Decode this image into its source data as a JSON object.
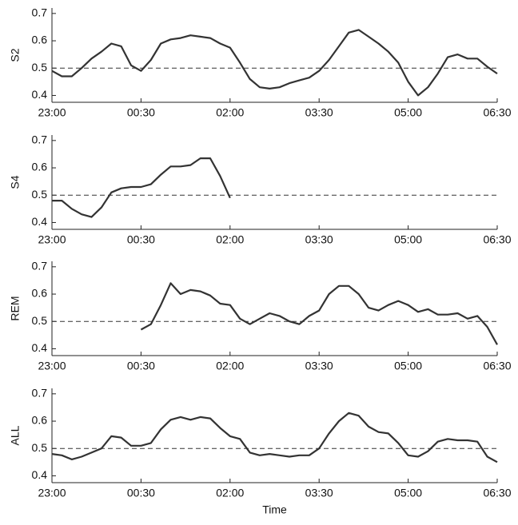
{
  "chart_data": [
    {
      "type": "line",
      "ylabel": "S2",
      "color": "#333333",
      "hline": 0.5,
      "hline_style": "dashed",
      "x": [
        0,
        10,
        20,
        30,
        40,
        50,
        60,
        70,
        80,
        90,
        100,
        110,
        120,
        130,
        140,
        150,
        160,
        170,
        180,
        190,
        200,
        210,
        220,
        230,
        240,
        250,
        260,
        270,
        280,
        290,
        300,
        310,
        320,
        330,
        340,
        350,
        360,
        370,
        380,
        390,
        400,
        410,
        420,
        430,
        440,
        450
      ],
      "values": [
        0.49,
        0.47,
        0.47,
        0.5,
        0.535,
        0.56,
        0.59,
        0.58,
        0.51,
        0.49,
        0.53,
        0.59,
        0.605,
        0.61,
        0.62,
        0.615,
        0.61,
        0.59,
        0.575,
        0.52,
        0.46,
        0.43,
        0.425,
        0.43,
        0.445,
        0.455,
        0.465,
        0.49,
        0.53,
        0.58,
        0.63,
        0.64,
        0.615,
        0.59,
        0.56,
        0.52,
        0.45,
        0.4,
        0.43,
        0.48,
        0.54,
        0.55,
        0.535,
        0.535,
        0.505,
        0.48
      ],
      "xlim": [
        0,
        450
      ],
      "xticks": [
        {
          "value": 0,
          "label": "23:00"
        },
        {
          "value": 90,
          "label": "00:30"
        },
        {
          "value": 180,
          "label": "02:00"
        },
        {
          "value": 270,
          "label": "03:30"
        },
        {
          "value": 360,
          "label": "05:00"
        },
        {
          "value": 450,
          "label": "06:30"
        }
      ],
      "ylim": [
        0.375,
        0.72
      ],
      "yticks": [
        0.4,
        0.5,
        0.6,
        0.7
      ]
    },
    {
      "type": "line",
      "ylabel": "S4",
      "color": "#333333",
      "hline": 0.5,
      "hline_style": "dashed",
      "x": [
        0,
        10,
        20,
        30,
        40,
        50,
        60,
        70,
        80,
        90,
        100,
        110,
        120,
        130,
        140,
        150,
        160,
        170,
        180
      ],
      "values": [
        0.48,
        0.48,
        0.45,
        0.43,
        0.42,
        0.455,
        0.51,
        0.525,
        0.53,
        0.53,
        0.54,
        0.575,
        0.605,
        0.605,
        0.61,
        0.635,
        0.635,
        0.57,
        0.49
      ],
      "xlim": [
        0,
        450
      ],
      "xticks": [
        {
          "value": 0,
          "label": "23:00"
        },
        {
          "value": 90,
          "label": "00:30"
        },
        {
          "value": 180,
          "label": "02:00"
        },
        {
          "value": 270,
          "label": "03:30"
        },
        {
          "value": 360,
          "label": "05:00"
        },
        {
          "value": 450,
          "label": "06:30"
        }
      ],
      "ylim": [
        0.375,
        0.72
      ],
      "yticks": [
        0.4,
        0.5,
        0.6,
        0.7
      ]
    },
    {
      "type": "line",
      "ylabel": "REM",
      "color": "#333333",
      "hline": 0.5,
      "hline_style": "dashed",
      "x": [
        90,
        100,
        110,
        120,
        130,
        140,
        150,
        160,
        170,
        180,
        190,
        200,
        210,
        220,
        230,
        240,
        250,
        260,
        270,
        280,
        290,
        300,
        310,
        320,
        330,
        340,
        350,
        360,
        370,
        380,
        390,
        400,
        410,
        420,
        430,
        440,
        450
      ],
      "values": [
        0.47,
        0.49,
        0.56,
        0.64,
        0.6,
        0.615,
        0.61,
        0.595,
        0.565,
        0.56,
        0.51,
        0.49,
        0.51,
        0.53,
        0.52,
        0.5,
        0.49,
        0.52,
        0.54,
        0.6,
        0.63,
        0.63,
        0.6,
        0.55,
        0.54,
        0.56,
        0.575,
        0.56,
        0.535,
        0.545,
        0.525,
        0.525,
        0.53,
        0.51,
        0.52,
        0.48,
        0.415
      ],
      "xlim": [
        0,
        450
      ],
      "xticks": [
        {
          "value": 0,
          "label": "23:00"
        },
        {
          "value": 90,
          "label": "00:30"
        },
        {
          "value": 180,
          "label": "02:00"
        },
        {
          "value": 270,
          "label": "03:30"
        },
        {
          "value": 360,
          "label": "05:00"
        },
        {
          "value": 450,
          "label": "06:30"
        }
      ],
      "ylim": [
        0.375,
        0.72
      ],
      "yticks": [
        0.4,
        0.5,
        0.6,
        0.7
      ]
    },
    {
      "type": "line",
      "ylabel": "ALL",
      "xlabel": "Time",
      "color": "#333333",
      "hline": 0.5,
      "hline_style": "dashed",
      "x": [
        0,
        10,
        20,
        30,
        40,
        50,
        60,
        70,
        80,
        90,
        100,
        110,
        120,
        130,
        140,
        150,
        160,
        170,
        180,
        190,
        200,
        210,
        220,
        230,
        240,
        250,
        260,
        270,
        280,
        290,
        300,
        310,
        320,
        330,
        340,
        350,
        360,
        370,
        380,
        390,
        400,
        410,
        420,
        430,
        440,
        450
      ],
      "values": [
        0.48,
        0.475,
        0.46,
        0.47,
        0.485,
        0.5,
        0.545,
        0.54,
        0.51,
        0.51,
        0.52,
        0.57,
        0.605,
        0.615,
        0.605,
        0.615,
        0.61,
        0.575,
        0.545,
        0.535,
        0.485,
        0.475,
        0.48,
        0.475,
        0.47,
        0.475,
        0.475,
        0.5,
        0.555,
        0.6,
        0.63,
        0.62,
        0.58,
        0.56,
        0.555,
        0.52,
        0.475,
        0.47,
        0.49,
        0.525,
        0.535,
        0.53,
        0.53,
        0.525,
        0.47,
        0.45
      ],
      "xlim": [
        0,
        450
      ],
      "xticks": [
        {
          "value": 0,
          "label": "23:00"
        },
        {
          "value": 90,
          "label": "00:30"
        },
        {
          "value": 180,
          "label": "02:00"
        },
        {
          "value": 270,
          "label": "03:30"
        },
        {
          "value": 360,
          "label": "05:00"
        },
        {
          "value": 450,
          "label": "06:30"
        }
      ],
      "ylim": [
        0.375,
        0.72
      ],
      "yticks": [
        0.4,
        0.5,
        0.6,
        0.7
      ]
    }
  ]
}
